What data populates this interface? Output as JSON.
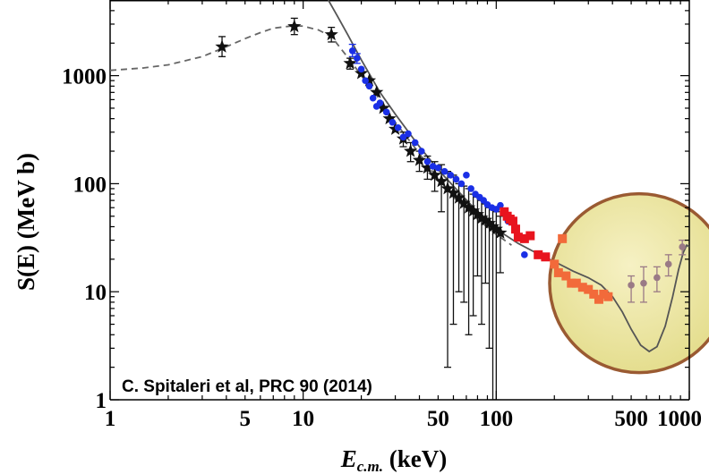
{
  "chart_data": {
    "type": "scatter",
    "x_scale": "log",
    "y_scale": "log",
    "xlim": [
      1,
      1000
    ],
    "ylim": [
      1,
      5000
    ],
    "x_ticks": [
      {
        "value": 1,
        "label": "1"
      },
      {
        "value": 5,
        "label": "5"
      },
      {
        "value": 10,
        "label": "10"
      },
      {
        "value": 50,
        "label": "50"
      },
      {
        "value": 100,
        "label": "100"
      },
      {
        "value": 500,
        "label": "500"
      },
      {
        "value": 1000,
        "label": "1000"
      }
    ],
    "y_ticks": [
      {
        "value": 1,
        "label": "1"
      },
      {
        "value": 10,
        "label": "10"
      },
      {
        "value": 100,
        "label": "100"
      },
      {
        "value": 1000,
        "label": "1000"
      }
    ],
    "xlabel_main": "E",
    "xlabel_sub": "c.m.",
    "xlabel_unit": " (keV)",
    "ylabel": "S(E) (MeV b)",
    "annotation": "C. Spitaleri et al, PRC 90 (2014)",
    "grid": false,
    "highlight_circle": {
      "x_center": 550,
      "y_center": 12,
      "color": "#eee9a8",
      "edge": "#9a5a32"
    },
    "colors": {
      "black": "#111111",
      "blue": "#1a2fe6",
      "red": "#e8141e",
      "orange": "#f26a3a",
      "mauve": "#9a7a86"
    },
    "series": [
      {
        "marker": "star",
        "color": "#111111",
        "points": [
          {
            "x": 3.8,
            "y": 1850,
            "lo": 1500,
            "hi": 2300
          },
          {
            "x": 9,
            "y": 2850,
            "lo": 2400,
            "hi": 3400
          },
          {
            "x": 14,
            "y": 2400,
            "lo": 2050,
            "hi": 2800
          },
          {
            "x": 17.5,
            "y": 1300,
            "lo": 1150,
            "hi": 1450
          },
          {
            "x": 20,
            "y": 1050
          },
          {
            "x": 22,
            "y": 900
          },
          {
            "x": 24,
            "y": 700
          },
          {
            "x": 26,
            "y": 500
          },
          {
            "x": 28,
            "y": 400
          },
          {
            "x": 30,
            "y": 320
          },
          {
            "x": 33,
            "y": 260,
            "lo": 220,
            "hi": 300
          },
          {
            "x": 36,
            "y": 200,
            "lo": 160,
            "hi": 240
          },
          {
            "x": 40,
            "y": 165,
            "lo": 130,
            "hi": 200
          },
          {
            "x": 44,
            "y": 140,
            "lo": 110,
            "hi": 180
          },
          {
            "x": 48,
            "y": 120,
            "lo": 85,
            "hi": 160
          },
          {
            "x": 52,
            "y": 105,
            "lo": 55,
            "hi": 150
          },
          {
            "x": 56,
            "y": 90,
            "lo": 2,
            "hi": 130
          },
          {
            "x": 60,
            "y": 82,
            "lo": 5,
            "hi": 120
          },
          {
            "x": 64,
            "y": 74,
            "lo": 10,
            "hi": 100
          },
          {
            "x": 68,
            "y": 66,
            "lo": 8,
            "hi": 95
          },
          {
            "x": 72,
            "y": 60,
            "lo": 4,
            "hi": 90
          },
          {
            "x": 76,
            "y": 56,
            "lo": 6,
            "hi": 80
          },
          {
            "x": 80,
            "y": 52,
            "lo": 14,
            "hi": 75
          },
          {
            "x": 84,
            "y": 48,
            "lo": 5,
            "hi": 70
          },
          {
            "x": 88,
            "y": 46,
            "lo": 12,
            "hi": 65
          },
          {
            "x": 92,
            "y": 43,
            "lo": 3,
            "hi": 60
          },
          {
            "x": 96,
            "y": 40,
            "lo": 1,
            "hi": 58
          },
          {
            "x": 100,
            "y": 38,
            "lo": 1,
            "hi": 55
          },
          {
            "x": 105,
            "y": 35,
            "lo": 15,
            "hi": 50
          }
        ]
      },
      {
        "marker": "circle",
        "color": "#1a2fe6",
        "points": [
          {
            "x": 18,
            "y": 1700,
            "lo": 1500,
            "hi": 1950
          },
          {
            "x": 19,
            "y": 1450,
            "lo": 1300,
            "hi": 1600
          },
          {
            "x": 20,
            "y": 1150
          },
          {
            "x": 21,
            "y": 900
          },
          {
            "x": 22,
            "y": 800
          },
          {
            "x": 23,
            "y": 620
          },
          {
            "x": 24,
            "y": 520
          },
          {
            "x": 25,
            "y": 560
          },
          {
            "x": 27,
            "y": 460
          },
          {
            "x": 29,
            "y": 370
          },
          {
            "x": 31,
            "y": 330
          },
          {
            "x": 33,
            "y": 270
          },
          {
            "x": 35,
            "y": 290
          },
          {
            "x": 38,
            "y": 240
          },
          {
            "x": 41,
            "y": 200
          },
          {
            "x": 44,
            "y": 160
          },
          {
            "x": 47,
            "y": 145
          },
          {
            "x": 50,
            "y": 140
          },
          {
            "x": 54,
            "y": 130
          },
          {
            "x": 58,
            "y": 120
          },
          {
            "x": 62,
            "y": 110
          },
          {
            "x": 66,
            "y": 100
          },
          {
            "x": 70,
            "y": 120
          },
          {
            "x": 74,
            "y": 90
          },
          {
            "x": 78,
            "y": 80
          },
          {
            "x": 82,
            "y": 75
          },
          {
            "x": 86,
            "y": 70
          },
          {
            "x": 90,
            "y": 64
          },
          {
            "x": 95,
            "y": 60
          },
          {
            "x": 100,
            "y": 58
          },
          {
            "x": 105,
            "y": 63
          },
          {
            "x": 115,
            "y": 45
          },
          {
            "x": 125,
            "y": 40
          },
          {
            "x": 140,
            "y": 22
          }
        ]
      },
      {
        "marker": "square",
        "color": "#e8141e",
        "points": [
          {
            "x": 110,
            "y": 55
          },
          {
            "x": 114,
            "y": 50
          },
          {
            "x": 118,
            "y": 47
          },
          {
            "x": 122,
            "y": 45
          },
          {
            "x": 126,
            "y": 38
          },
          {
            "x": 130,
            "y": 32
          },
          {
            "x": 140,
            "y": 31
          },
          {
            "x": 150,
            "y": 33
          },
          {
            "x": 165,
            "y": 22
          },
          {
            "x": 180,
            "y": 21
          }
        ]
      },
      {
        "marker": "square",
        "color": "#f26a3a",
        "points": [
          {
            "x": 200,
            "y": 18
          },
          {
            "x": 210,
            "y": 15
          },
          {
            "x": 220,
            "y": 31
          },
          {
            "x": 230,
            "y": 14
          },
          {
            "x": 245,
            "y": 12
          },
          {
            "x": 260,
            "y": 12
          },
          {
            "x": 280,
            "y": 11
          },
          {
            "x": 300,
            "y": 10.5
          },
          {
            "x": 320,
            "y": 9.5
          },
          {
            "x": 340,
            "y": 8.5
          },
          {
            "x": 360,
            "y": 9.5
          },
          {
            "x": 380,
            "y": 9
          }
        ]
      },
      {
        "marker": "circle",
        "color": "#9a7a86",
        "points": [
          {
            "x": 500,
            "y": 11.5,
            "lo": 8,
            "hi": 14
          },
          {
            "x": 580,
            "y": 12,
            "lo": 8,
            "hi": 17
          },
          {
            "x": 680,
            "y": 13.5,
            "lo": 10,
            "hi": 17
          },
          {
            "x": 780,
            "y": 18,
            "lo": 14,
            "hi": 22
          },
          {
            "x": 920,
            "y": 26,
            "lo": 22,
            "hi": 30
          }
        ]
      }
    ],
    "curves": [
      {
        "style": "dashed",
        "color": "#666666",
        "points": [
          [
            1,
            1120
          ],
          [
            1.5,
            1180
          ],
          [
            2,
            1260
          ],
          [
            3,
            1500
          ],
          [
            4,
            1850
          ],
          [
            5,
            2200
          ],
          [
            6,
            2500
          ],
          [
            7,
            2750
          ],
          [
            9,
            2900
          ],
          [
            10,
            2870
          ],
          [
            12,
            2650
          ],
          [
            14,
            2300
          ],
          [
            16,
            1700
          ],
          [
            18,
            1300
          ],
          [
            20,
            1000
          ],
          [
            25,
            600
          ],
          [
            30,
            370
          ],
          [
            40,
            190
          ],
          [
            50,
            110
          ],
          [
            60,
            75
          ],
          [
            80,
            47
          ],
          [
            100,
            34
          ],
          [
            120,
            27
          ]
        ]
      },
      {
        "style": "solid",
        "color": "#555555",
        "points": [
          [
            13.5,
            5000
          ],
          [
            15,
            3600
          ],
          [
            17,
            2400
          ],
          [
            20,
            1400
          ],
          [
            25,
            700
          ],
          [
            30,
            440
          ],
          [
            40,
            220
          ],
          [
            50,
            135
          ],
          [
            60,
            95
          ],
          [
            80,
            55
          ],
          [
            100,
            38
          ],
          [
            130,
            28
          ],
          [
            160,
            23
          ],
          [
            200,
            19
          ],
          [
            250,
            15.5
          ],
          [
            300,
            13.5
          ],
          [
            350,
            11.5
          ],
          [
            400,
            9
          ],
          [
            450,
            6.5
          ],
          [
            500,
            4.5
          ],
          [
            560,
            3.2
          ],
          [
            620,
            2.8
          ],
          [
            680,
            3.1
          ],
          [
            750,
            4.8
          ],
          [
            820,
            9
          ],
          [
            880,
            16
          ],
          [
            930,
            23
          ],
          [
            970,
            27
          ],
          [
            1000,
            26
          ]
        ]
      }
    ]
  }
}
